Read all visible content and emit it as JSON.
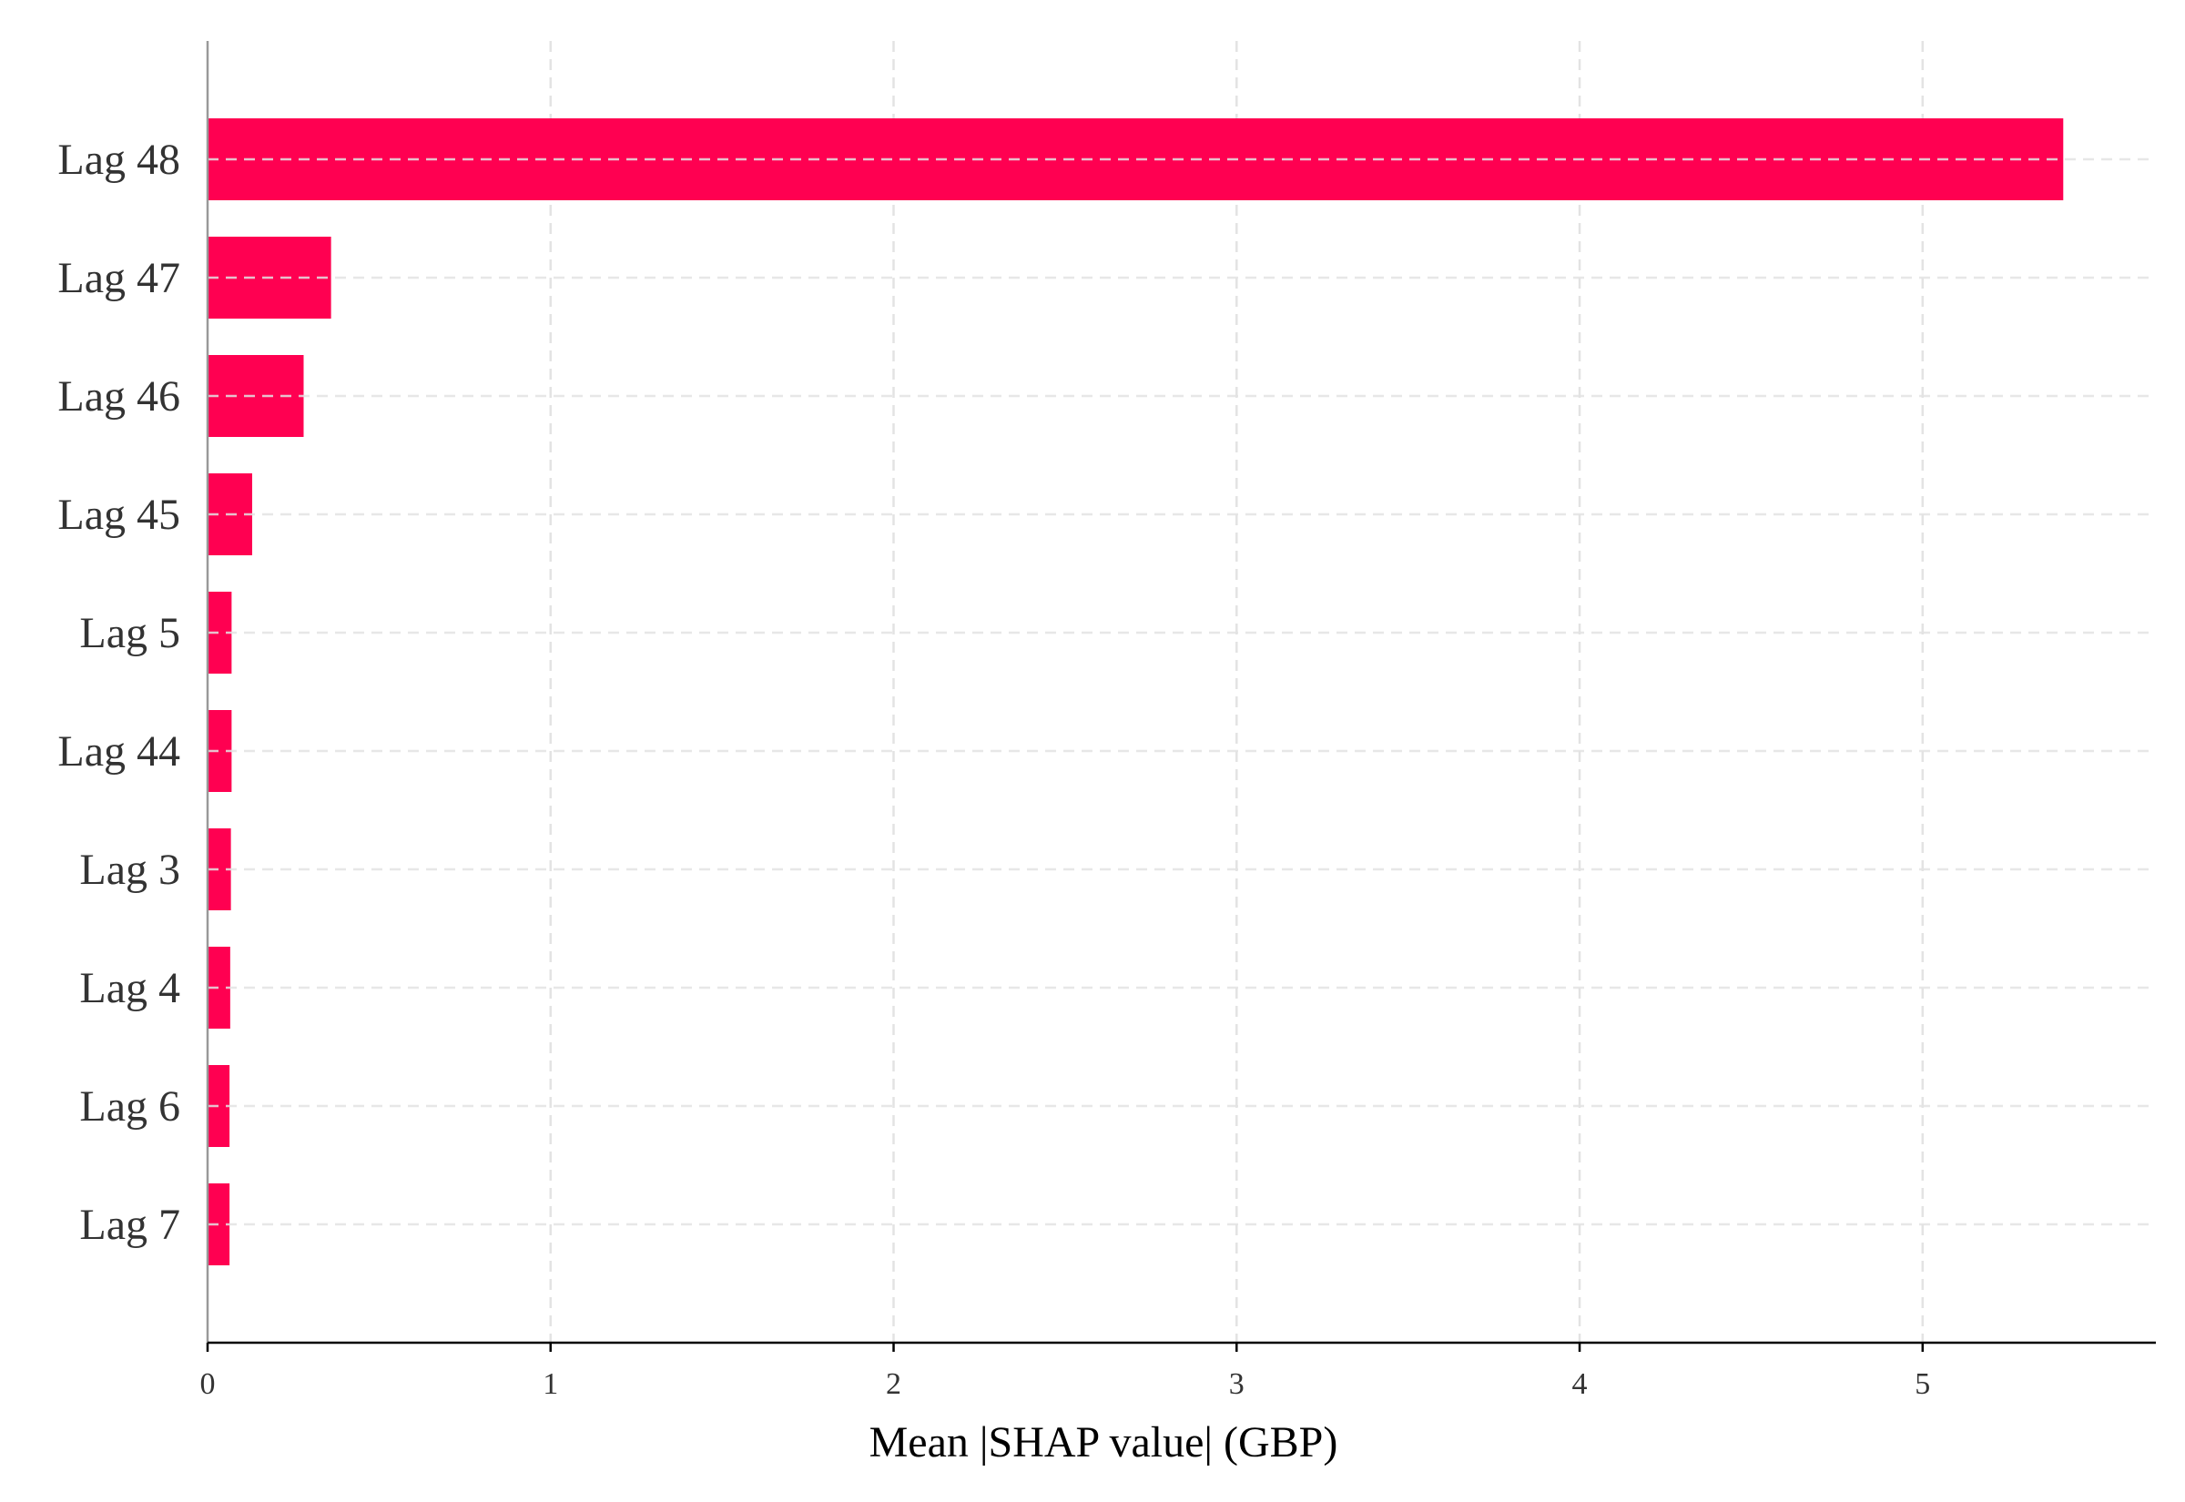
{
  "chart_data": {
    "type": "bar",
    "orientation": "horizontal",
    "categories": [
      "Lag 48",
      "Lag 47",
      "Lag 46",
      "Lag 45",
      "Lag 5",
      "Lag 44",
      "Lag 3",
      "Lag 4",
      "Lag 6",
      "Lag 7"
    ],
    "values": [
      5.41,
      0.36,
      0.28,
      0.13,
      0.07,
      0.07,
      0.068,
      0.066,
      0.064,
      0.064
    ],
    "xlabel": "Mean |SHAP value| (GBP)",
    "ylabel": "",
    "xlim": [
      0,
      5.68
    ],
    "xticks": [
      0,
      1,
      2,
      3,
      4,
      5
    ],
    "grid": true,
    "legend": "none",
    "colors": {
      "bar": "#ff0051",
      "grid": "#e3e3e3",
      "axis_bottom": "#000000",
      "axis_left": "#999999"
    }
  }
}
